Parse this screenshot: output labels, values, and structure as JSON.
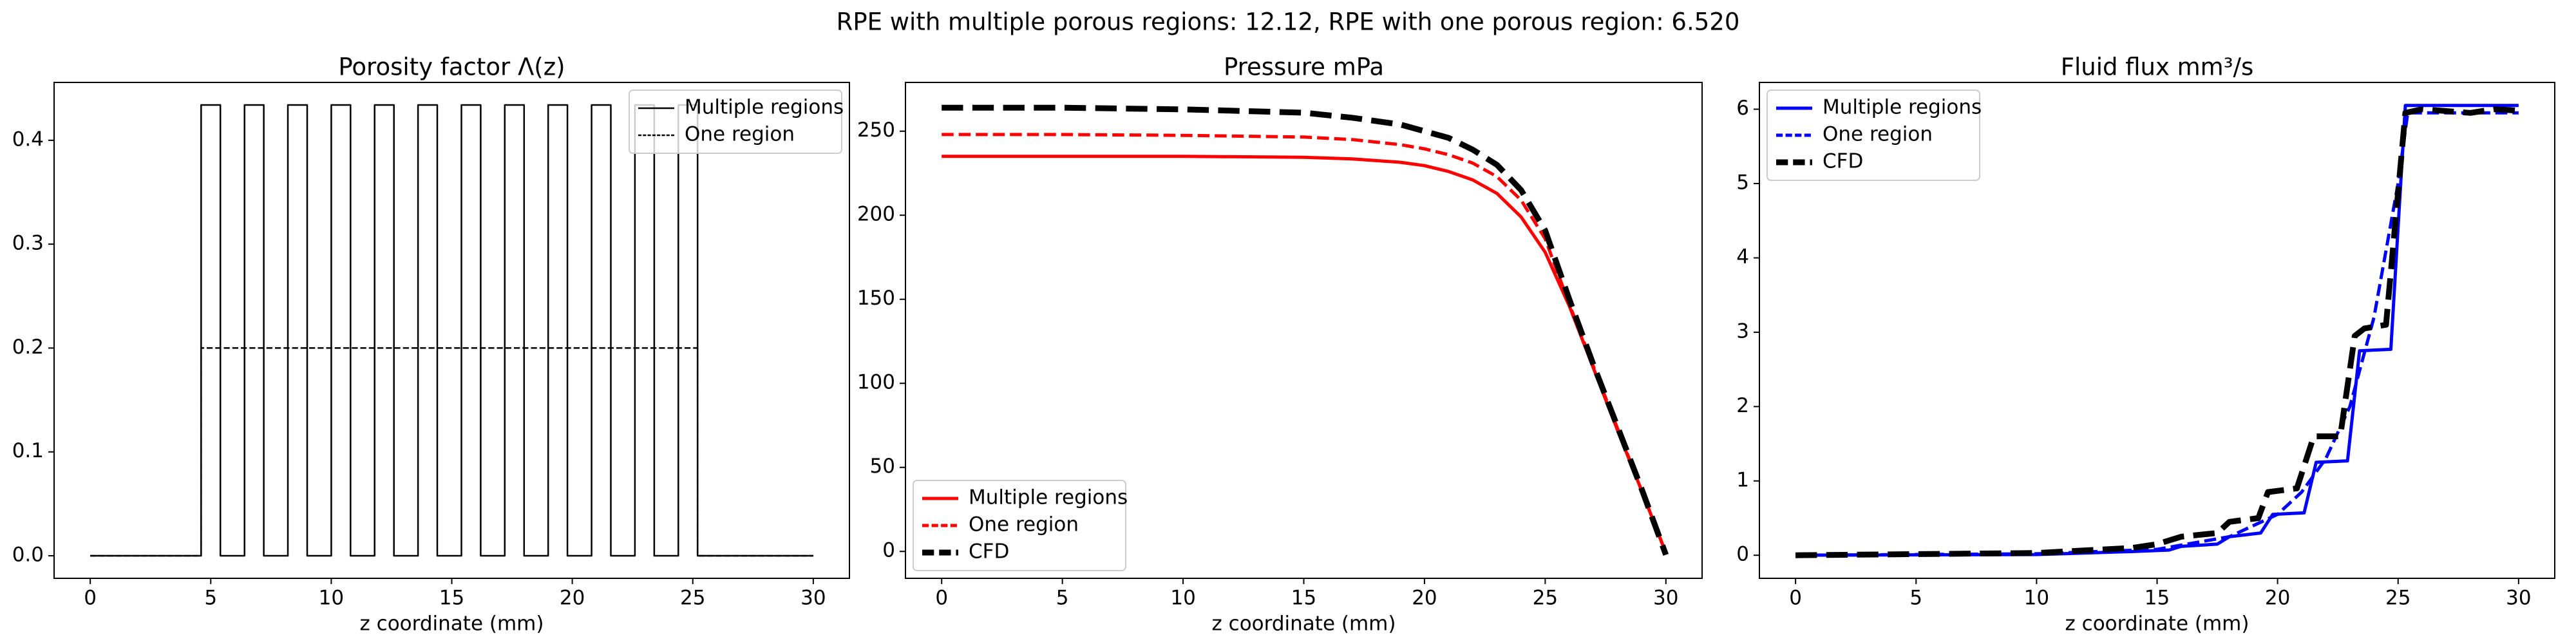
{
  "title": "RPE with multiple porous regions: 12.12, RPE with one porous region: 6.520",
  "chart_data": [
    {
      "type": "line",
      "title": "Porosity factor Λ(z)",
      "x_label": "z coordinate (mm)",
      "xlim": [
        -1.5,
        31.5
      ],
      "xticks": [
        0,
        5,
        10,
        15,
        20,
        25,
        30
      ],
      "ylim": [
        -0.0217,
        0.4557
      ],
      "yticks": [
        {
          "value": 0,
          "label": "0.0"
        },
        0.1,
        0.2,
        0.3,
        0.4
      ],
      "legend": "upper right",
      "series": [
        {
          "name": "Multiple regions",
          "color": "#000000",
          "linestyle": "solid",
          "linewidth": 2.5,
          "x": [
            0,
            4.6,
            4.6,
            5.4,
            5.4,
            6.4,
            6.4,
            7.2,
            7.2,
            8.2,
            8.2,
            9.0,
            9.0,
            10.0,
            10.0,
            10.8,
            10.8,
            11.8,
            11.8,
            12.6,
            12.6,
            13.6,
            13.6,
            14.4,
            14.4,
            15.4,
            15.4,
            16.2,
            16.2,
            17.2,
            17.2,
            18.0,
            18.0,
            19.0,
            19.0,
            19.8,
            19.8,
            20.8,
            20.8,
            21.6,
            21.6,
            22.6,
            22.6,
            23.4,
            23.4,
            24.4,
            24.4,
            25.2,
            25.2,
            30
          ],
          "values": [
            0,
            0,
            0.434,
            0.434,
            0,
            0,
            0.434,
            0.434,
            0,
            0,
            0.434,
            0.434,
            0,
            0,
            0.434,
            0.434,
            0,
            0,
            0.434,
            0.434,
            0,
            0,
            0.434,
            0.434,
            0,
            0,
            0.434,
            0.434,
            0,
            0,
            0.434,
            0.434,
            0,
            0,
            0.434,
            0.434,
            0,
            0,
            0.434,
            0.434,
            0,
            0,
            0.434,
            0.434,
            0,
            0,
            0.434,
            0.434,
            0,
            0
          ]
        },
        {
          "name": "One region",
          "color": "#000000",
          "linestyle": "dashed",
          "linewidth": 2.5,
          "x": [
            0,
            4.6,
            4.6,
            25.2,
            25.2,
            30
          ],
          "values": [
            0,
            0,
            0.2,
            0.2,
            0,
            0
          ]
        }
      ]
    },
    {
      "type": "line",
      "title": "Pressure mPa",
      "x_label": "z coordinate (mm)",
      "xlim": [
        -1.5,
        31.5
      ],
      "xticks": [
        0,
        5,
        10,
        15,
        20,
        25,
        30
      ],
      "ylim": [
        -16,
        279
      ],
      "yticks": [
        0,
        50,
        100,
        150,
        200,
        250
      ],
      "legend": "lower left",
      "series": [
        {
          "name": "Multiple regions",
          "color": "#ff0000",
          "linestyle": "solid",
          "linewidth": 5,
          "x": [
            0,
            5,
            10,
            15,
            17,
            19,
            20,
            21,
            22,
            23,
            24,
            25,
            26,
            27,
            28,
            29,
            30
          ],
          "values": [
            235,
            235,
            235,
            234.5,
            233.5,
            231.5,
            229.5,
            226,
            221,
            213,
            199,
            178,
            146,
            109,
            72,
            36,
            -1
          ]
        },
        {
          "name": "One region",
          "color": "#ff0000",
          "linestyle": "dashed",
          "linewidth": 5,
          "x": [
            0,
            5,
            10,
            15,
            17,
            19,
            20,
            21,
            22,
            23,
            24,
            25,
            26,
            27,
            28,
            29,
            30
          ],
          "values": [
            248,
            248,
            247.5,
            246.5,
            245,
            242,
            239.5,
            236,
            231,
            223,
            209,
            186,
            147,
            110,
            73,
            36,
            -1
          ]
        },
        {
          "name": "CFD",
          "color": "#000000",
          "linestyle": "dashed",
          "linewidth": 9,
          "x": [
            0,
            5,
            10,
            15,
            17,
            19,
            20,
            21,
            22,
            23,
            24,
            25,
            26,
            27,
            28,
            29,
            30
          ],
          "values": [
            264,
            264,
            263,
            261,
            258,
            254,
            250,
            246,
            239,
            230,
            215,
            191,
            150,
            111,
            74,
            37,
            -2
          ]
        }
      ]
    },
    {
      "type": "line",
      "title": "Fluid flux mm³/s",
      "x_label": "z coordinate (mm)",
      "xlim": [
        -1.5,
        31.5
      ],
      "xticks": [
        0,
        5,
        10,
        15,
        20,
        25,
        30
      ],
      "ylim": [
        -0.31,
        6.36
      ],
      "yticks": [
        0,
        1,
        2,
        3,
        4,
        5,
        6
      ],
      "legend": "upper left",
      "series": [
        {
          "name": "Multiple regions",
          "color": "#0000ff",
          "linestyle": "solid",
          "linewidth": 5,
          "x": [
            0,
            10,
            14,
            15.5,
            16,
            17.5,
            18,
            19.3,
            19.8,
            21.1,
            21.6,
            22.9,
            23.4,
            24.7,
            25.3,
            30
          ],
          "values": [
            0,
            0.01,
            0.05,
            0.07,
            0.12,
            0.15,
            0.25,
            0.3,
            0.55,
            0.57,
            1.25,
            1.27,
            2.75,
            2.77,
            6.05,
            6.05
          ]
        },
        {
          "name": "One region",
          "color": "#0000ff",
          "linestyle": "dashed",
          "linewidth": 5,
          "x": [
            0,
            10,
            15,
            18,
            20,
            21,
            22,
            23,
            24,
            25,
            25.4,
            30
          ],
          "values": [
            0,
            0.02,
            0.08,
            0.25,
            0.55,
            0.85,
            1.3,
            2.0,
            3.2,
            5.0,
            5.95,
            5.95
          ]
        },
        {
          "name": "CFD",
          "color": "#000000",
          "linestyle": "dashed",
          "linewidth": 9,
          "x": [
            0,
            10,
            14,
            15,
            16,
            17.5,
            18,
            19.2,
            19.6,
            20.8,
            21.5,
            22.6,
            23.2,
            23.6,
            24.5,
            25.3,
            26,
            28,
            29,
            30
          ],
          "values": [
            0,
            0.03,
            0.1,
            0.15,
            0.25,
            0.3,
            0.45,
            0.5,
            0.85,
            0.9,
            1.6,
            1.6,
            2.95,
            3.05,
            3.1,
            5.95,
            6.0,
            5.95,
            6.0,
            5.98
          ]
        }
      ]
    }
  ]
}
